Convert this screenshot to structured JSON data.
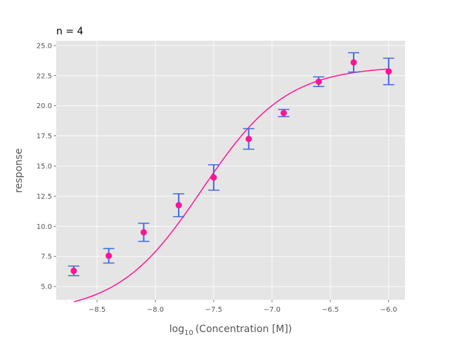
{
  "chart_data": {
    "type": "scatter",
    "title": "n = 4",
    "xlabel_base": "log",
    "xlabel_sub": "10",
    "xlabel_rest": "(Concentration [M])",
    "ylabel": "response",
    "xlim": [
      -8.85,
      -5.86
    ],
    "ylim": [
      3.9,
      25.4
    ],
    "x_ticks": [
      -8.5,
      -8.0,
      -7.5,
      -7.0,
      -6.5,
      -6.0
    ],
    "x_tick_labels": [
      "−8.5",
      "−8.0",
      "−7.5",
      "−7.0",
      "−6.5",
      "−6.0"
    ],
    "y_ticks": [
      5.0,
      7.5,
      10.0,
      12.5,
      15.0,
      17.5,
      20.0,
      22.5,
      25.0
    ],
    "y_tick_labels": [
      "5.0",
      "7.5",
      "10.0",
      "12.5",
      "15.0",
      "17.5",
      "20.0",
      "22.5",
      "25.0"
    ],
    "grid": true,
    "points": {
      "x": [
        -8.7,
        -8.4,
        -8.1,
        -7.8,
        -7.5,
        -7.2,
        -6.9,
        -6.6,
        -6.3,
        -6.0
      ],
      "y": [
        6.3,
        7.55,
        9.5,
        11.75,
        14.05,
        17.25,
        19.4,
        22.0,
        23.6,
        22.85
      ],
      "err": [
        0.4,
        0.6,
        0.75,
        0.95,
        1.05,
        0.85,
        0.3,
        0.4,
        0.8,
        1.1
      ]
    },
    "fit_curve": {
      "bottom": 2.8,
      "top": 23.3,
      "log_ec50": -7.6,
      "hill": 1.2,
      "x_start": -8.7,
      "x_end": -6.0
    },
    "colors": {
      "points": "#ff1493",
      "errorbars": "#4169e1",
      "curve": "#ff1493",
      "plot_bg": "#e5e5e5",
      "grid": "#ffffff"
    }
  }
}
